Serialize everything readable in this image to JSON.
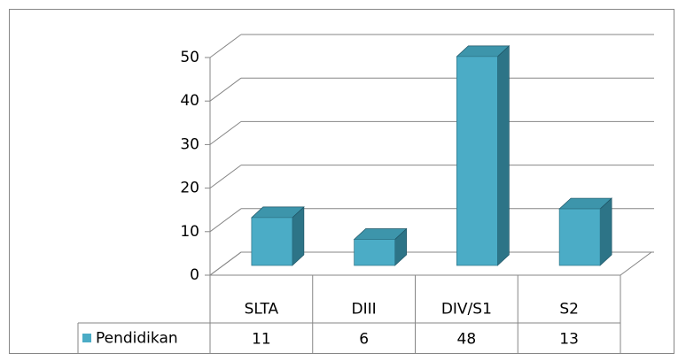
{
  "chart_data": {
    "type": "bar3d",
    "categories": [
      "SLTA",
      "DIII",
      "DIV/S1",
      "S2"
    ],
    "series": [
      {
        "name": "Pendidikan",
        "color": "#4bacc6",
        "values": [
          11,
          6,
          48,
          13
        ]
      }
    ],
    "ylim": [
      0,
      50
    ],
    "yticks": [
      0,
      10,
      20,
      30,
      40,
      50
    ],
    "grid": true,
    "legend": "bottom-left"
  }
}
